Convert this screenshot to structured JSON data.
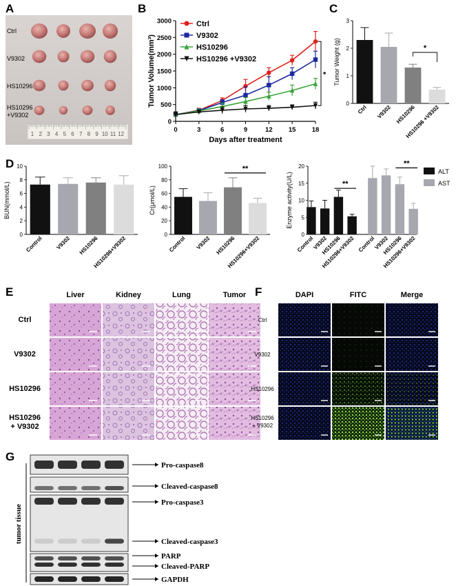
{
  "panels": {
    "A": {
      "label": "A",
      "groups": [
        "Ctrl",
        "V9302",
        "HS10296",
        "HS10296\n+V9302"
      ],
      "ruler": [
        "1",
        "2",
        "3",
        "4",
        "5",
        "6",
        "7",
        "8",
        "9",
        "10",
        "11",
        "12"
      ]
    },
    "B": {
      "label": "B",
      "chart_data": {
        "type": "line",
        "xlabel": "Days after treatment",
        "ylabel": "Tumor Volume(mm³)",
        "x": [
          0,
          3,
          6,
          9,
          12,
          15,
          18
        ],
        "xlim": [
          0,
          18
        ],
        "ylim": [
          0,
          3000
        ],
        "yticks": [
          0,
          500,
          1000,
          1500,
          2000,
          2500,
          3000
        ],
        "legend_position": "top-left",
        "series": [
          {
            "name": "Ctrl",
            "color": "#e0201b",
            "marker": "circle",
            "values": [
              200,
              330,
              620,
              1050,
              1450,
              1820,
              2380
            ],
            "err": [
              80,
              60,
              80,
              200,
              150,
              150,
              300
            ]
          },
          {
            "name": "V9302",
            "color": "#1a2aa0",
            "marker": "square",
            "values": [
              200,
              320,
              560,
              780,
              1080,
              1420,
              1840
            ],
            "err": [
              80,
              60,
              80,
              250,
              250,
              180,
              250
            ]
          },
          {
            "name": "HS10296",
            "color": "#3aa33a",
            "marker": "triangle",
            "values": [
              200,
              310,
              440,
              590,
              750,
              920,
              1120
            ],
            "err": [
              80,
              60,
              100,
              120,
              120,
              160,
              160
            ]
          },
          {
            "name": "HS10296 +V9302",
            "color": "#111111",
            "marker": "triangle-down",
            "values": [
              200,
              280,
              330,
              370,
              390,
              420,
              470
            ],
            "err": [
              80,
              60,
              100,
              100,
              80,
              70,
              100
            ]
          }
        ],
        "annotation": "*"
      }
    },
    "C": {
      "label": "C",
      "chart_data": {
        "type": "bar",
        "ylabel": "Tumor Weight (g)",
        "categories": [
          "Ctrl",
          "V9302",
          "HS10296",
          "HS10296 +V9302"
        ],
        "values": [
          2.3,
          2.05,
          1.3,
          0.5
        ],
        "err": [
          0.45,
          0.5,
          0.12,
          0.08
        ],
        "colors": [
          "#111111",
          "#a7a7b0",
          "#808080",
          "#dcdcdc"
        ],
        "ylim": [
          0,
          3
        ],
        "yticks": [
          0,
          1,
          2,
          3
        ],
        "annotation": "*"
      }
    },
    "D": {
      "label": "D",
      "charts": [
        {
          "type": "bar",
          "ylabel": "BUN(mmol/L)",
          "categories": [
            "Control",
            "V9302",
            "HS10296",
            "HS10296+V9302"
          ],
          "values": [
            7.3,
            7.4,
            7.6,
            7.3
          ],
          "err": [
            1.1,
            0.9,
            0.7,
            1.3
          ],
          "colors": [
            "#111111",
            "#a7a7b0",
            "#808080",
            "#dcdcdc"
          ],
          "ylim": [
            0,
            10
          ],
          "yticks": [
            0,
            2,
            4,
            6,
            8,
            10
          ]
        },
        {
          "type": "bar",
          "ylabel": "Cr(μmol/L)",
          "categories": [
            "Control",
            "V9302",
            "HS10296",
            "HS10296+V9302"
          ],
          "values": [
            55,
            49,
            69,
            46
          ],
          "err": [
            12,
            12,
            14,
            7
          ],
          "colors": [
            "#111111",
            "#a7a7b0",
            "#808080",
            "#dcdcdc"
          ],
          "ylim": [
            0,
            100
          ],
          "yticks": [
            0,
            20,
            40,
            60,
            80,
            100
          ],
          "annotation": "**"
        },
        {
          "type": "bar",
          "ylabel": "Enzyme activity(U/L)",
          "categories": [
            "Control",
            "V9302",
            "HS10296",
            "HS10296+V9302",
            "Control",
            "V9302",
            "HS10296",
            "HS10296+V9302"
          ],
          "series": [
            {
              "name": "ALT",
              "color": "#111111",
              "values": [
                8.0,
                7.6,
                11.0,
                5.3
              ],
              "err": [
                1.8,
                2.4,
                2.0,
                0.6
              ]
            },
            {
              "name": "AST",
              "color": "#a7a7b0",
              "values": [
                16.5,
                17.3,
                14.7,
                7.5
              ],
              "err": [
                3.5,
                1.9,
                2.1,
                1.6
              ]
            }
          ],
          "ylim": [
            0,
            20
          ],
          "yticks": [
            0,
            5,
            10,
            15,
            20
          ],
          "annotation": "**"
        }
      ]
    },
    "E": {
      "label": "E",
      "columns": [
        "Liver",
        "Kidney",
        "Lung",
        "Tumor"
      ],
      "rows": [
        "Ctrl",
        "V9302",
        "HS10296",
        "HS10296\n+ V9302"
      ]
    },
    "F": {
      "label": "F",
      "columns": [
        "DAPI",
        "FITC",
        "Merge"
      ],
      "rows": [
        "Ctrl",
        "V9302",
        "HS10296",
        "HS10296\n+ V9302"
      ]
    },
    "G": {
      "label": "G",
      "side_label": "tumor tissue",
      "bands": [
        "Pro-caspase8",
        "Cleaved-caspase8",
        "Pro-caspase3",
        "Cleaved-caspase3",
        "PARP",
        "Cleaved-PARP",
        "GAPDH"
      ]
    }
  }
}
